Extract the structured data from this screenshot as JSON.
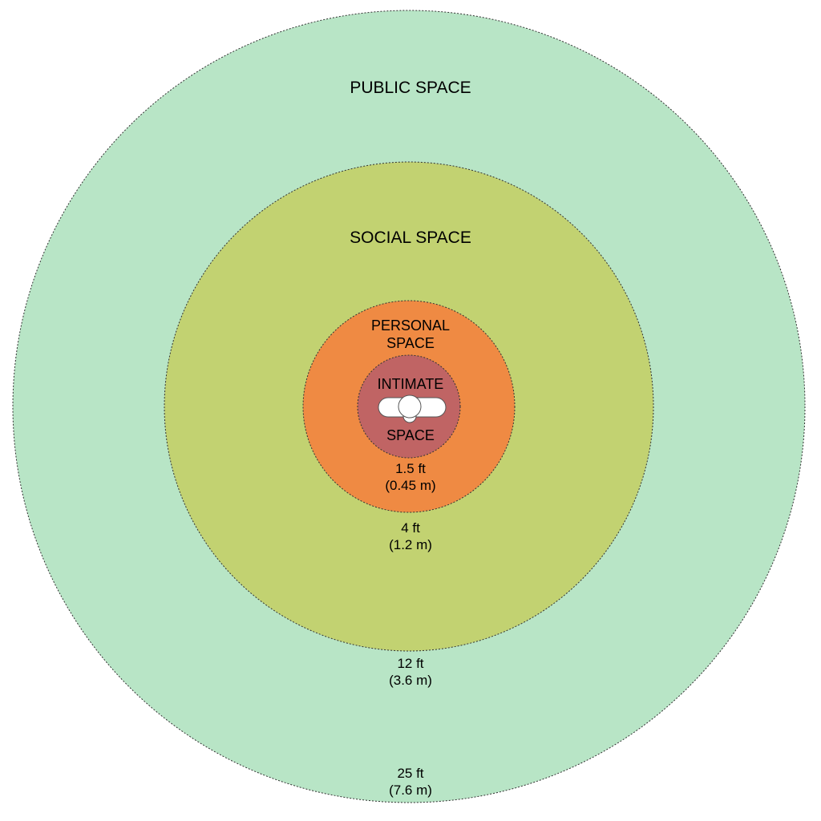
{
  "zones": {
    "public": {
      "title": "PUBLIC SPACE",
      "distance_ft": "25 ft",
      "distance_m": "(7.6 m)",
      "color": "#b8e5c6"
    },
    "social": {
      "title": "SOCIAL SPACE",
      "distance_ft": "12 ft",
      "distance_m": "(3.6 m)",
      "color": "#c2d271"
    },
    "personal": {
      "title_line1": "PERSONAL",
      "title_line2": "SPACE",
      "distance_ft": "4 ft",
      "distance_m": "(1.2 m)",
      "color": "#ef8a43"
    },
    "intimate": {
      "title_line1": "INTIMATE",
      "title_line2": "SPACE",
      "distance_ft": "1.5 ft",
      "distance_m": "(0.45 m)",
      "color": "#c06464"
    }
  },
  "person": {
    "icon": "person-top-view-icon",
    "color": "#ffffff"
  },
  "border": {
    "style": "dotted",
    "color": "#333333"
  }
}
